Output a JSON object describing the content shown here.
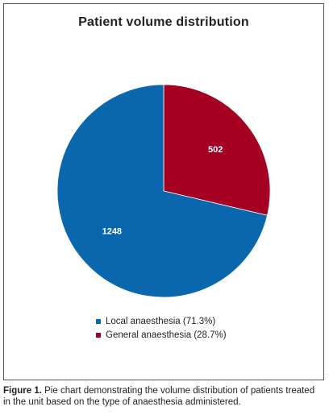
{
  "chart_data": {
    "type": "pie",
    "title": "Patient volume distribution",
    "slices": [
      {
        "label": "Local anaesthesia (71.3%)",
        "value": 1248,
        "value_label": "1248",
        "color": "#0b67ad"
      },
      {
        "label": "General anaesthesia (28.7%)",
        "value": 502,
        "value_label": "502",
        "color": "#a50021"
      }
    ],
    "legend_position": "bottom"
  },
  "caption": {
    "lead": "Figure 1.",
    "text": " Pie chart demonstrating the volume distribution of patients treated in the unit based on the type of anaesthesia administered."
  }
}
